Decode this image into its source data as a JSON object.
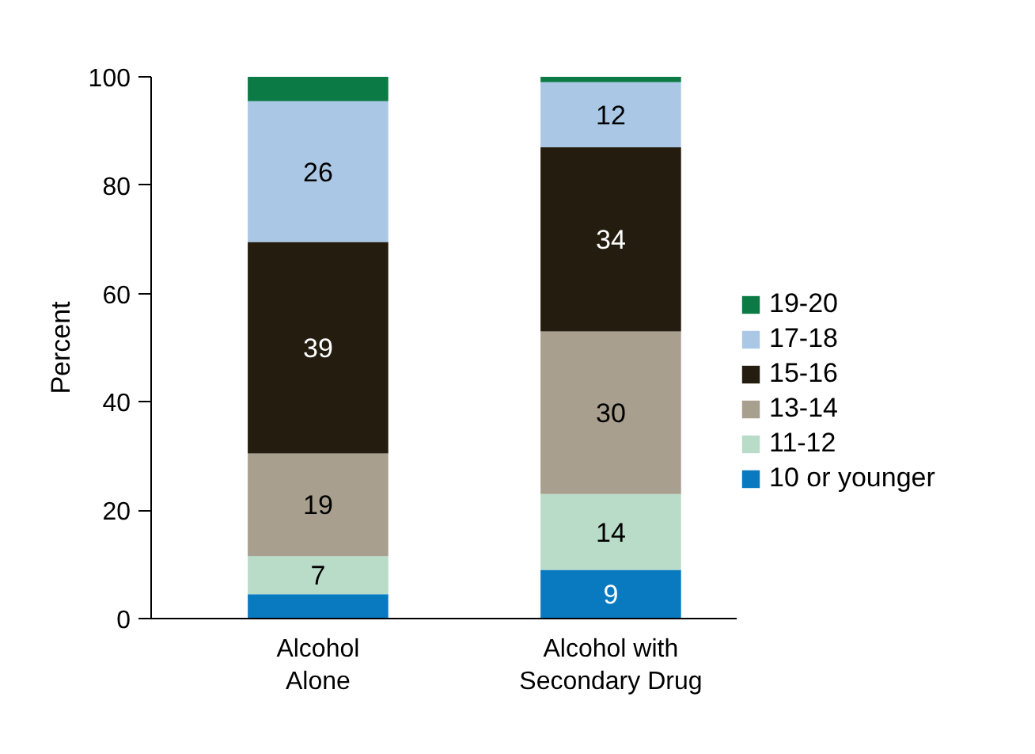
{
  "chart_data": {
    "type": "bar",
    "stacked": true,
    "ylabel": "Percent",
    "categories": [
      "Alcohol Alone",
      "Alcohol with Secondary Drug"
    ],
    "ylim": [
      0,
      100
    ],
    "yticks": [
      0,
      20,
      40,
      60,
      80,
      100
    ],
    "grid": false,
    "legend": "right",
    "series": [
      {
        "name": "10 or younger",
        "color": "#0a7ac0",
        "values": [
          4.5,
          9
        ],
        "value_labels": [
          null,
          "9"
        ]
      },
      {
        "name": "11-12",
        "color": "#b9dcc9",
        "values": [
          7,
          14
        ],
        "value_labels": [
          "7",
          "14"
        ]
      },
      {
        "name": "13-14",
        "color": "#a89f8e",
        "values": [
          19,
          30
        ],
        "value_labels": [
          "19",
          "30"
        ]
      },
      {
        "name": "15-16",
        "color": "#241c0e",
        "values": [
          39,
          34
        ],
        "value_labels": [
          "39",
          "34"
        ]
      },
      {
        "name": "17-18",
        "color": "#aac8e6",
        "values": [
          26,
          12
        ],
        "value_labels": [
          "26",
          "12"
        ]
      },
      {
        "name": "19-20",
        "color": "#0b7a45",
        "values": [
          4.5,
          1
        ],
        "value_labels": [
          null,
          null
        ]
      }
    ]
  }
}
